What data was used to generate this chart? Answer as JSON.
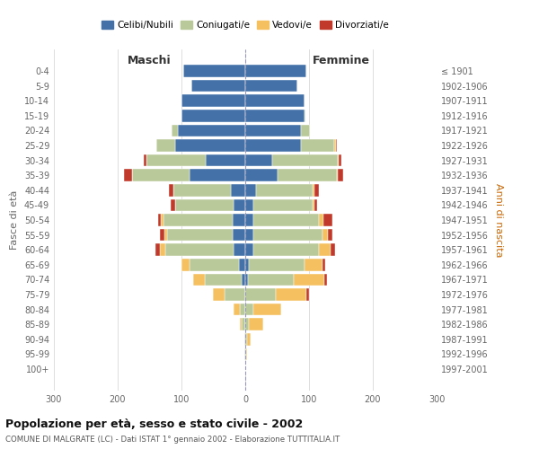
{
  "age_groups": [
    "0-4",
    "5-9",
    "10-14",
    "15-19",
    "20-24",
    "25-29",
    "30-34",
    "35-39",
    "40-44",
    "45-49",
    "50-54",
    "55-59",
    "60-64",
    "65-69",
    "70-74",
    "75-79",
    "80-84",
    "85-89",
    "90-94",
    "95-99",
    "100+"
  ],
  "birth_years": [
    "1997-2001",
    "1992-1996",
    "1987-1991",
    "1982-1986",
    "1977-1981",
    "1972-1976",
    "1967-1971",
    "1962-1966",
    "1957-1961",
    "1952-1956",
    "1947-1951",
    "1942-1946",
    "1937-1941",
    "1932-1936",
    "1927-1931",
    "1922-1926",
    "1917-1921",
    "1912-1916",
    "1907-1911",
    "1902-1906",
    "≤ 1901"
  ],
  "maschi": {
    "celibi": [
      97,
      84,
      100,
      100,
      105,
      110,
      62,
      88,
      22,
      18,
      20,
      20,
      18,
      10,
      5,
      0,
      0,
      0,
      0,
      0,
      0
    ],
    "coniugati": [
      0,
      0,
      0,
      0,
      10,
      30,
      93,
      90,
      90,
      92,
      108,
      103,
      108,
      78,
      58,
      33,
      8,
      5,
      2,
      1,
      0
    ],
    "vedovi": [
      0,
      0,
      0,
      0,
      0,
      0,
      0,
      0,
      0,
      0,
      4,
      4,
      8,
      12,
      18,
      18,
      10,
      4,
      0,
      0,
      0
    ],
    "divorziati": [
      0,
      0,
      0,
      0,
      0,
      0,
      4,
      12,
      8,
      7,
      4,
      7,
      7,
      0,
      0,
      0,
      0,
      0,
      0,
      0,
      0
    ]
  },
  "femmine": {
    "nubili": [
      96,
      82,
      93,
      93,
      88,
      88,
      42,
      50,
      17,
      13,
      13,
      13,
      13,
      5,
      4,
      0,
      0,
      0,
      0,
      0,
      0
    ],
    "coniugate": [
      0,
      0,
      0,
      2,
      13,
      52,
      103,
      93,
      88,
      92,
      103,
      108,
      103,
      88,
      72,
      48,
      13,
      5,
      3,
      1,
      0
    ],
    "vedove": [
      0,
      0,
      0,
      0,
      0,
      2,
      2,
      2,
      4,
      4,
      7,
      8,
      18,
      28,
      48,
      48,
      43,
      23,
      5,
      2,
      0
    ],
    "divorziate": [
      0,
      0,
      0,
      0,
      0,
      2,
      4,
      8,
      7,
      4,
      13,
      8,
      7,
      4,
      4,
      4,
      0,
      0,
      0,
      0,
      0
    ]
  },
  "colors": {
    "celibi": "#4472a8",
    "coniugati": "#b9c99a",
    "vedovi": "#f5c060",
    "divorziati": "#c0392b"
  },
  "legend_labels": [
    "Celibi/Nubili",
    "Coniugati/e",
    "Vedovi/e",
    "Divorziati/e"
  ],
  "title": "Popolazione per età, sesso e stato civile - 2002",
  "subtitle": "COMUNE DI MALGRATE (LC) - Dati ISTAT 1° gennaio 2002 - Elaborazione TUTTITALIA.IT",
  "ylabel": "Fasce di età",
  "ylabel_right": "Anni di nascita",
  "xlabel_left": "Maschi",
  "xlabel_right": "Femmine",
  "xlim": 300,
  "bg_color": "#ffffff",
  "grid_color": "#d0d0d0"
}
